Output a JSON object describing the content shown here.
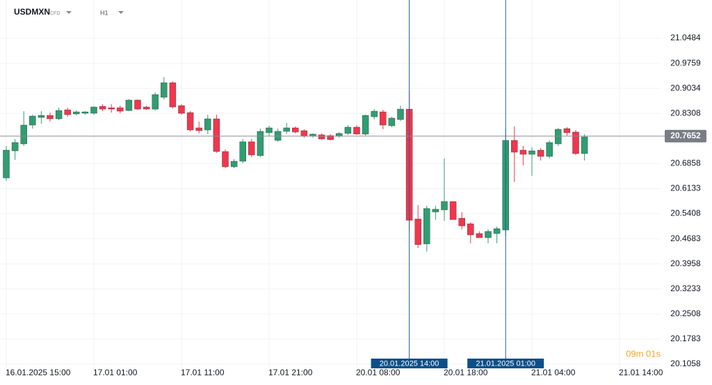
{
  "chart_data": {
    "type": "candlestick",
    "symbol": "USDMXN",
    "symbol_tag": "CFD",
    "timeframe": "H1",
    "categories": [
      "16.01.2025 15:00",
      null,
      null,
      null,
      null,
      null,
      null,
      null,
      null,
      null,
      "17.01 01:00",
      null,
      null,
      null,
      null,
      null,
      null,
      null,
      null,
      null,
      "17.01 11:00",
      null,
      null,
      null,
      null,
      null,
      null,
      null,
      null,
      null,
      "17.01 21:00",
      null,
      null,
      null,
      null,
      null,
      null,
      null,
      null,
      null,
      "20.01 08:00",
      null,
      null,
      null,
      null,
      null,
      null,
      null,
      null,
      null,
      "20.01 18:00",
      null,
      null,
      null,
      null,
      null,
      null,
      null,
      null,
      null,
      "21.01 04:00",
      null,
      null,
      null,
      null,
      null,
      null,
      null,
      null,
      null,
      "21.01 14:00"
    ],
    "open": [
      20.6444,
      20.7228,
      20.7429,
      20.7972,
      20.8193,
      20.8253,
      20.8153,
      20.8414,
      20.8294,
      20.8314,
      20.8314,
      20.8515,
      20.8474,
      20.8474,
      20.8394,
      20.8696,
      20.8495,
      20.8434,
      20.8776,
      20.9198,
      20.8535,
      20.8334,
      20.7892,
      20.7831,
      20.8153,
      20.7208,
      20.6766,
      20.6927,
      20.749,
      20.7088,
      20.7751,
      20.753,
      20.7791,
      20.7892,
      20.7811,
      20.765,
      20.7691,
      20.767,
      20.765,
      20.7731,
      20.7912,
      20.7711,
      20.8213,
      20.8354,
      20.7952,
      20.8133,
      20.8434,
      20.5258,
      20.4535,
      20.5459,
      20.552,
      20.5761,
      20.5279,
      20.5118,
      20.4836,
      20.4716,
      20.4836,
      20.4937,
      20.753,
      20.7248,
      20.7128,
      20.7248,
      20.7067,
      20.7429,
      20.7871,
      20.7771,
      20.7148,
      null,
      null,
      null,
      null
    ],
    "high": [
      20.7369,
      20.757,
      20.8374,
      20.8273,
      20.8374,
      20.8334,
      20.8474,
      20.8474,
      20.8394,
      20.8374,
      20.8515,
      20.8575,
      20.8575,
      20.8535,
      20.8716,
      20.8716,
      20.8535,
      20.8917,
      20.9359,
      20.9238,
      20.8575,
      20.8374,
      20.8072,
      20.8273,
      20.8273,
      20.7268,
      20.6987,
      20.757,
      20.757,
      20.7871,
      20.7952,
      20.7871,
      20.8032,
      20.7932,
      20.7851,
      20.7731,
      20.7731,
      20.7711,
      20.7771,
      20.7972,
      20.7972,
      20.8273,
      20.8434,
      20.8414,
      20.8213,
      20.8535,
      20.8977,
      20.566,
      20.564,
      20.564,
      20.7007,
      20.5761,
      20.5459,
      20.5158,
      20.4897,
      20.4957,
      20.5037,
      20.7871,
      20.7932,
      20.7369,
      20.7329,
      20.7309,
      20.753,
      20.7892,
      20.7912,
      20.7831,
      20.7711,
      null,
      null,
      null,
      null
    ],
    "low": [
      20.6364,
      20.6967,
      20.7369,
      20.7871,
      20.8012,
      20.8072,
      20.8113,
      20.8213,
      20.8253,
      20.8273,
      20.8273,
      20.8374,
      20.8334,
      20.8314,
      20.8374,
      20.8414,
      20.8414,
      20.8394,
      20.8716,
      20.8454,
      20.8273,
      20.7791,
      20.7731,
      20.7711,
      20.7168,
      20.6726,
      20.6726,
      20.6866,
      20.7047,
      20.7047,
      20.765,
      20.749,
      20.7711,
      20.7731,
      20.761,
      20.761,
      20.755,
      20.753,
      20.761,
      20.7691,
      20.7691,
      20.767,
      20.8133,
      20.7851,
      20.7912,
      20.8093,
      20.4917,
      20.4414,
      20.4314,
      20.5238,
      20.5198,
      20.5238,
      20.4957,
      20.4555,
      20.4716,
      20.4555,
      20.4555,
      20.4756,
      20.6324,
      20.6806,
      20.6505,
      20.6947,
      20.7007,
      20.7369,
      20.767,
      20.7108,
      20.6947,
      null,
      null,
      null,
      null
    ],
    "close": [
      20.7248,
      20.7469,
      20.7972,
      20.8233,
      20.8253,
      20.8153,
      20.8394,
      20.8273,
      20.8354,
      20.8354,
      20.8495,
      20.8434,
      20.8434,
      20.8374,
      20.8696,
      20.8434,
      20.8434,
      20.8856,
      20.9198,
      20.8495,
      20.8314,
      20.7831,
      20.7811,
      20.8153,
      20.7208,
      20.6766,
      20.6927,
      20.749,
      20.7108,
      20.7791,
      20.7892,
      20.7791,
      20.7892,
      20.7771,
      20.765,
      20.7711,
      20.757,
      20.755,
      20.7731,
      20.7912,
      20.7711,
      20.8253,
      20.8374,
      20.7972,
      20.8173,
      20.8434,
      20.5218,
      20.4515,
      20.556,
      20.554,
      20.5761,
      20.5238,
      20.5057,
      20.4796,
      20.4716,
      20.4897,
      20.4977,
      20.753,
      20.7188,
      20.7128,
      20.7228,
      20.7067,
      20.7469,
      20.7851,
      20.7751,
      20.7148,
      20.763,
      null,
      null,
      null,
      null
    ],
    "up_color": "#2f9e72",
    "down_color": "#f2364d",
    "ylim": [
      20.1058,
      21.159
    ],
    "yticks": [
      20.1058,
      20.1783,
      20.2508,
      20.3233,
      20.3958,
      20.4683,
      20.5408,
      20.6133,
      20.6858,
      20.8308,
      20.9034,
      20.9759,
      21.0484
    ],
    "grid": true,
    "current_price": 20.7652,
    "markers": [
      {
        "index": 46,
        "label": "20.01.2025 14:00"
      },
      {
        "index": 57,
        "label": "21.01.2025 01:00"
      }
    ],
    "countdown": "09m 01s"
  }
}
